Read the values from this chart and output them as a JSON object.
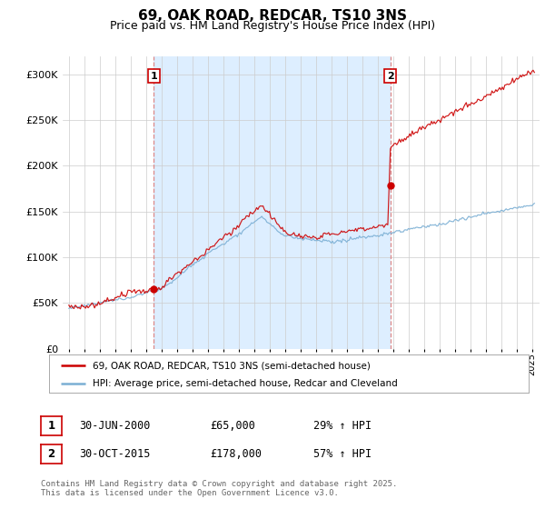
{
  "title": "69, OAK ROAD, REDCAR, TS10 3NS",
  "subtitle": "Price paid vs. HM Land Registry's House Price Index (HPI)",
  "ylim": [
    0,
    320000
  ],
  "yticks": [
    0,
    50000,
    100000,
    150000,
    200000,
    250000,
    300000
  ],
  "ytick_labels": [
    "£0",
    "£50K",
    "£100K",
    "£150K",
    "£200K",
    "£250K",
    "£300K"
  ],
  "line1_color": "#cc0000",
  "line2_color": "#7bafd4",
  "shade_color": "#ddeeff",
  "vline_color": "#dd8888",
  "legend_label1": "69, OAK ROAD, REDCAR, TS10 3NS (semi-detached house)",
  "legend_label2": "HPI: Average price, semi-detached house, Redcar and Cleveland",
  "table_row1": [
    "1",
    "30-JUN-2000",
    "£65,000",
    "29% ↑ HPI"
  ],
  "table_row2": [
    "2",
    "30-OCT-2015",
    "£178,000",
    "57% ↑ HPI"
  ],
  "footer": "Contains HM Land Registry data © Crown copyright and database right 2025.\nThis data is licensed under the Open Government Licence v3.0.",
  "grid_color": "#cccccc",
  "title_fontsize": 11,
  "subtitle_fontsize": 9,
  "sale1_year": 2000.5,
  "sale2_year": 2015.83,
  "sale1_price": 65000,
  "sale2_price": 178000
}
